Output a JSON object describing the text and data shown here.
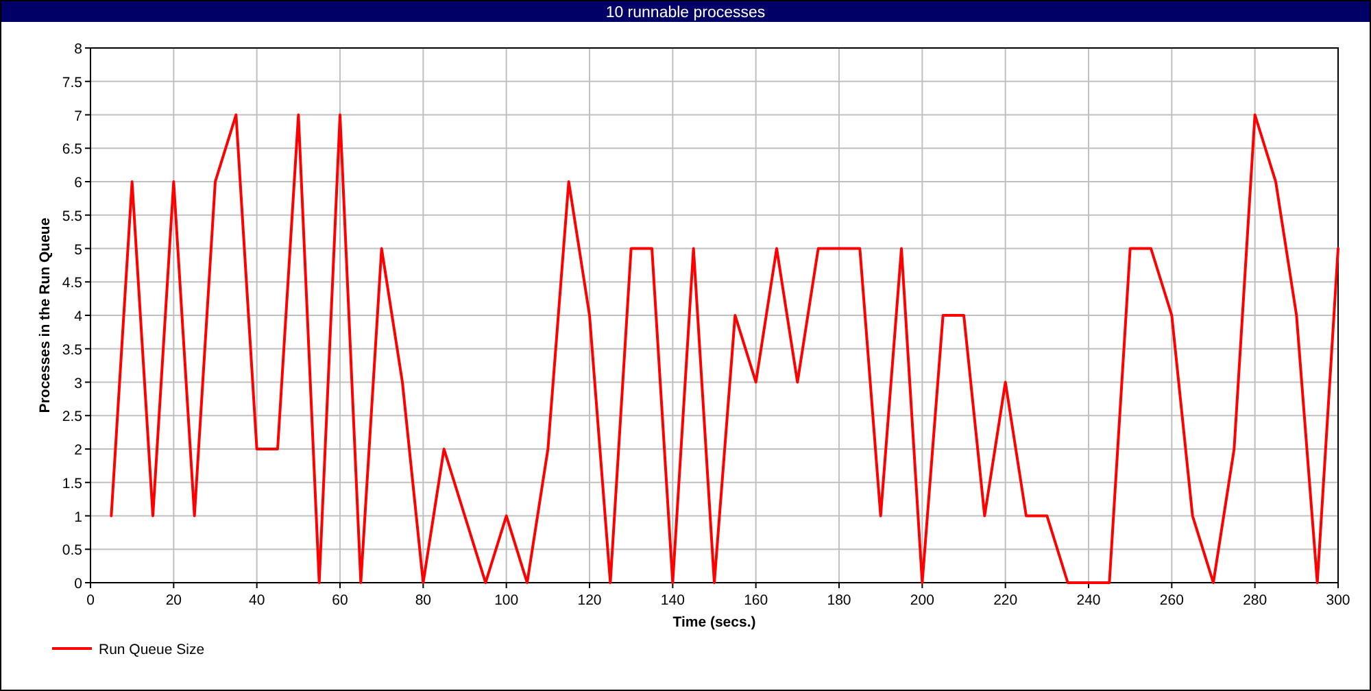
{
  "chart_data": {
    "type": "line",
    "title": "10 runnable processes",
    "xlabel": "Time (secs.)",
    "ylabel": "Processes in the Run Queue",
    "x": [
      5,
      10,
      15,
      20,
      25,
      30,
      35,
      40,
      45,
      50,
      55,
      60,
      65,
      70,
      75,
      80,
      85,
      90,
      95,
      100,
      105,
      110,
      115,
      120,
      125,
      130,
      135,
      140,
      145,
      150,
      155,
      160,
      165,
      170,
      175,
      180,
      185,
      190,
      195,
      200,
      205,
      210,
      215,
      220,
      225,
      230,
      235,
      240,
      245,
      250,
      255,
      260,
      265,
      270,
      275,
      280,
      285,
      290,
      295,
      300
    ],
    "series": [
      {
        "name": "Run Queue Size",
        "color": "#ff0000",
        "values": [
          1,
          6,
          1,
          6,
          1,
          6,
          7,
          2,
          2,
          7,
          0,
          7,
          0,
          5,
          3,
          0,
          2,
          1,
          0,
          1,
          0,
          2,
          6,
          4,
          0,
          5,
          5,
          0,
          5,
          0,
          4,
          3,
          5,
          3,
          5,
          5,
          5,
          1,
          5,
          0,
          4,
          4,
          1,
          3,
          1,
          1,
          0,
          0,
          0,
          5,
          5,
          4,
          1,
          0,
          2,
          7,
          6,
          4,
          0,
          5
        ]
      }
    ],
    "xlim": [
      0,
      300
    ],
    "xticks": [
      0,
      20,
      40,
      60,
      80,
      100,
      120,
      140,
      160,
      180,
      200,
      220,
      240,
      260,
      280,
      300
    ],
    "ylim": [
      0,
      8
    ],
    "yticks": [
      0,
      0.5,
      1,
      1.5,
      2,
      2.5,
      3,
      3.5,
      4,
      4.5,
      5,
      5.5,
      6,
      6.5,
      7,
      7.5,
      8
    ],
    "grid": true,
    "legend": "bottom left"
  }
}
